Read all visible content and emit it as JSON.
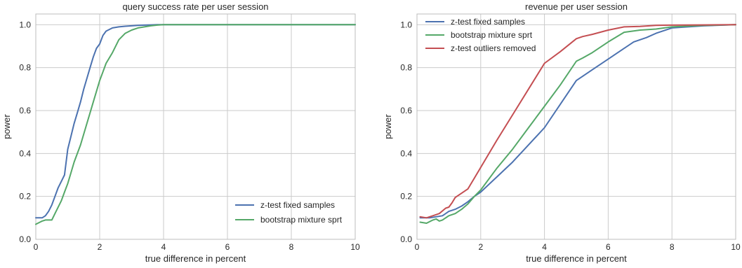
{
  "chart_data": [
    {
      "type": "line",
      "title": "query success rate per user session",
      "xlabel": "true difference in percent",
      "ylabel": "power",
      "xlim": [
        0,
        10
      ],
      "ylim": [
        0,
        1.05
      ],
      "xticks": [
        0,
        2,
        4,
        6,
        8,
        10
      ],
      "yticks": [
        0.0,
        0.2,
        0.4,
        0.6,
        0.8,
        1.0
      ],
      "xtick_labels": [
        "0",
        "2",
        "4",
        "6",
        "8",
        "10"
      ],
      "ytick_labels": [
        "0.0",
        "0.2",
        "0.4",
        "0.6",
        "0.8",
        "1.0"
      ],
      "grid": true,
      "legend_position": "lower-right",
      "series": [
        {
          "name": "z-test fixed samples",
          "color": "#4c72b0",
          "x": [
            0,
            0.2,
            0.3,
            0.4,
            0.5,
            0.6,
            0.7,
            0.8,
            0.9,
            0.95,
            1.0,
            1.1,
            1.2,
            1.3,
            1.4,
            1.5,
            1.6,
            1.7,
            1.8,
            1.9,
            2.0,
            2.1,
            2.2,
            2.4,
            2.6,
            2.8,
            3.0,
            3.2,
            3.4,
            3.6,
            3.8,
            4.0,
            6.0,
            8.0,
            10.0
          ],
          "y": [
            0.1,
            0.1,
            0.11,
            0.13,
            0.16,
            0.2,
            0.24,
            0.27,
            0.3,
            0.36,
            0.42,
            0.48,
            0.54,
            0.59,
            0.64,
            0.7,
            0.75,
            0.8,
            0.85,
            0.89,
            0.91,
            0.95,
            0.97,
            0.985,
            0.99,
            0.993,
            0.995,
            0.997,
            0.998,
            0.999,
            1.0,
            1.0,
            1.0,
            1.0,
            1.0
          ]
        },
        {
          "name": "bootstrap mixture sprt",
          "color": "#55a868",
          "x": [
            0,
            0.2,
            0.3,
            0.5,
            0.6,
            0.8,
            0.9,
            1.0,
            1.1,
            1.2,
            1.4,
            1.6,
            1.8,
            2.0,
            2.1,
            2.2,
            2.4,
            2.6,
            2.8,
            3.0,
            3.2,
            3.4,
            3.6,
            3.8,
            4.0,
            6.0,
            8.0,
            10.0
          ],
          "y": [
            0.07,
            0.085,
            0.09,
            0.09,
            0.12,
            0.18,
            0.22,
            0.26,
            0.31,
            0.36,
            0.44,
            0.54,
            0.64,
            0.74,
            0.78,
            0.82,
            0.87,
            0.93,
            0.96,
            0.975,
            0.985,
            0.99,
            0.995,
            0.998,
            1.0,
            1.0,
            1.0,
            1.0
          ]
        }
      ]
    },
    {
      "type": "line",
      "title": "revenue per user session",
      "xlabel": "true difference in percent",
      "ylabel": "power",
      "xlim": [
        0,
        10
      ],
      "ylim": [
        0,
        1.05
      ],
      "xticks": [
        0,
        2,
        4,
        6,
        8,
        10
      ],
      "yticks": [
        0.0,
        0.2,
        0.4,
        0.6,
        0.8,
        1.0
      ],
      "xtick_labels": [
        "0",
        "2",
        "4",
        "6",
        "8",
        "10"
      ],
      "ytick_labels": [
        "0.0",
        "0.2",
        "0.4",
        "0.6",
        "0.8",
        "1.0"
      ],
      "grid": true,
      "legend_position": "upper-left",
      "series": [
        {
          "name": "z-test fixed samples",
          "color": "#4c72b0",
          "x": [
            0.1,
            0.2,
            0.4,
            0.6,
            0.8,
            1.0,
            1.2,
            1.4,
            1.6,
            1.8,
            2.0,
            2.5,
            3.0,
            3.5,
            4.0,
            4.5,
            5.0,
            5.2,
            5.5,
            6.0,
            6.5,
            6.8,
            7.2,
            7.5,
            8.0,
            9.0,
            10.0
          ],
          "y": [
            0.1,
            0.1,
            0.1,
            0.105,
            0.11,
            0.13,
            0.14,
            0.155,
            0.175,
            0.2,
            0.22,
            0.29,
            0.36,
            0.44,
            0.52,
            0.63,
            0.74,
            0.76,
            0.79,
            0.84,
            0.89,
            0.92,
            0.94,
            0.96,
            0.985,
            0.995,
            1.0
          ]
        },
        {
          "name": "bootstrap mixture sprt",
          "color": "#55a868",
          "x": [
            0.1,
            0.3,
            0.5,
            0.6,
            0.7,
            0.8,
            1.0,
            1.2,
            1.4,
            1.6,
            1.8,
            2.0,
            2.5,
            3.0,
            3.5,
            4.0,
            4.5,
            5.0,
            5.2,
            5.5,
            6.0,
            6.5,
            7.0,
            7.5,
            8.0,
            9.0,
            10.0
          ],
          "y": [
            0.08,
            0.075,
            0.09,
            0.095,
            0.085,
            0.09,
            0.11,
            0.12,
            0.14,
            0.165,
            0.2,
            0.23,
            0.33,
            0.42,
            0.52,
            0.62,
            0.72,
            0.83,
            0.845,
            0.87,
            0.92,
            0.965,
            0.975,
            0.98,
            0.99,
            0.997,
            1.0
          ]
        },
        {
          "name": "z-test outliers removed",
          "color": "#c44e52",
          "x": [
            0.1,
            0.3,
            0.5,
            0.7,
            0.9,
            1.0,
            1.1,
            1.2,
            1.4,
            1.6,
            1.8,
            2.0,
            2.5,
            3.0,
            3.5,
            4.0,
            4.5,
            5.0,
            5.2,
            5.5,
            6.0,
            6.5,
            7.0,
            7.5,
            8.0,
            9.0,
            10.0
          ],
          "y": [
            0.105,
            0.1,
            0.11,
            0.12,
            0.145,
            0.15,
            0.17,
            0.195,
            0.215,
            0.235,
            0.285,
            0.335,
            0.46,
            0.58,
            0.7,
            0.82,
            0.875,
            0.935,
            0.945,
            0.955,
            0.975,
            0.99,
            0.992,
            0.997,
            0.998,
            0.999,
            1.0
          ]
        }
      ]
    }
  ]
}
